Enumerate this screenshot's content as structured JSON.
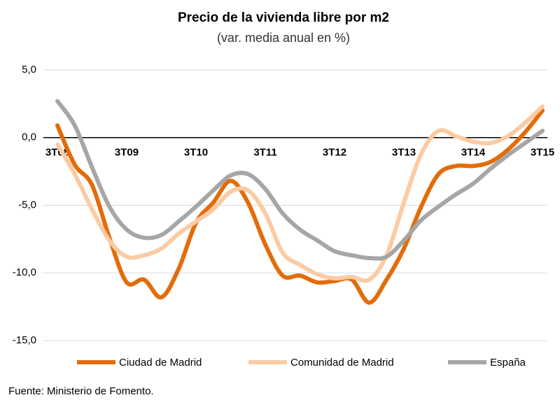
{
  "chart_data": {
    "type": "line",
    "title": "Precio de la vivienda libre por m2",
    "subtitle": "(var. media anual en %)",
    "source": "Fuente: Ministerio de Fomento.",
    "categories": [
      "3T08",
      null,
      null,
      null,
      "3T09",
      null,
      null,
      null,
      "3T10",
      null,
      null,
      null,
      "3T11",
      null,
      null,
      null,
      "3T12",
      null,
      null,
      null,
      "3T13",
      null,
      null,
      null,
      "3T14",
      null,
      null,
      null,
      "3T15"
    ],
    "series": [
      {
        "name": "Ciudad de Madrid",
        "color": "#e36c0a",
        "values": [
          0.9,
          -2.0,
          -3.5,
          -7.4,
          -10.7,
          -10.5,
          -11.8,
          -9.7,
          -6.3,
          -4.8,
          -3.2,
          -4.8,
          -7.9,
          -10.2,
          -10.2,
          -10.7,
          -10.6,
          -10.5,
          -12.2,
          -10.5,
          -8.2,
          -5.1,
          -2.7,
          -2.1,
          -2.1,
          -1.8,
          -0.9,
          0.4,
          2.0
        ]
      },
      {
        "name": "Comunidad de Madrid",
        "color": "#fbcba3",
        "values": [
          -0.5,
          -2.7,
          -5.3,
          -7.6,
          -8.8,
          -8.7,
          -8.2,
          -7.1,
          -6.2,
          -5.3,
          -4.0,
          -3.9,
          -5.6,
          -8.5,
          -9.4,
          -10.1,
          -10.4,
          -10.3,
          -10.5,
          -8.7,
          -4.8,
          -1.2,
          0.5,
          0.1,
          -0.3,
          -0.4,
          0.1,
          1.1,
          2.3
        ]
      },
      {
        "name": "España",
        "color": "#a6a6a6",
        "values": [
          2.7,
          0.9,
          -2.2,
          -5.1,
          -6.8,
          -7.4,
          -7.2,
          -6.2,
          -5.1,
          -3.9,
          -2.8,
          -2.7,
          -3.8,
          -5.6,
          -6.8,
          -7.6,
          -8.4,
          -8.7,
          -8.9,
          -8.8,
          -7.6,
          -6.1,
          -5.1,
          -4.2,
          -3.4,
          -2.3,
          -1.3,
          -0.4,
          0.5
        ]
      }
    ],
    "ylim": [
      -15,
      5
    ],
    "yticks": [
      {
        "value": 5,
        "label": "5,0"
      },
      {
        "value": 0,
        "label": "0,0"
      },
      {
        "value": -5,
        "label": "-5,0"
      },
      {
        "value": -10,
        "label": "-10,0"
      },
      {
        "value": -15,
        "label": "-15,0"
      }
    ],
    "grid": true,
    "legend": "bottom"
  }
}
